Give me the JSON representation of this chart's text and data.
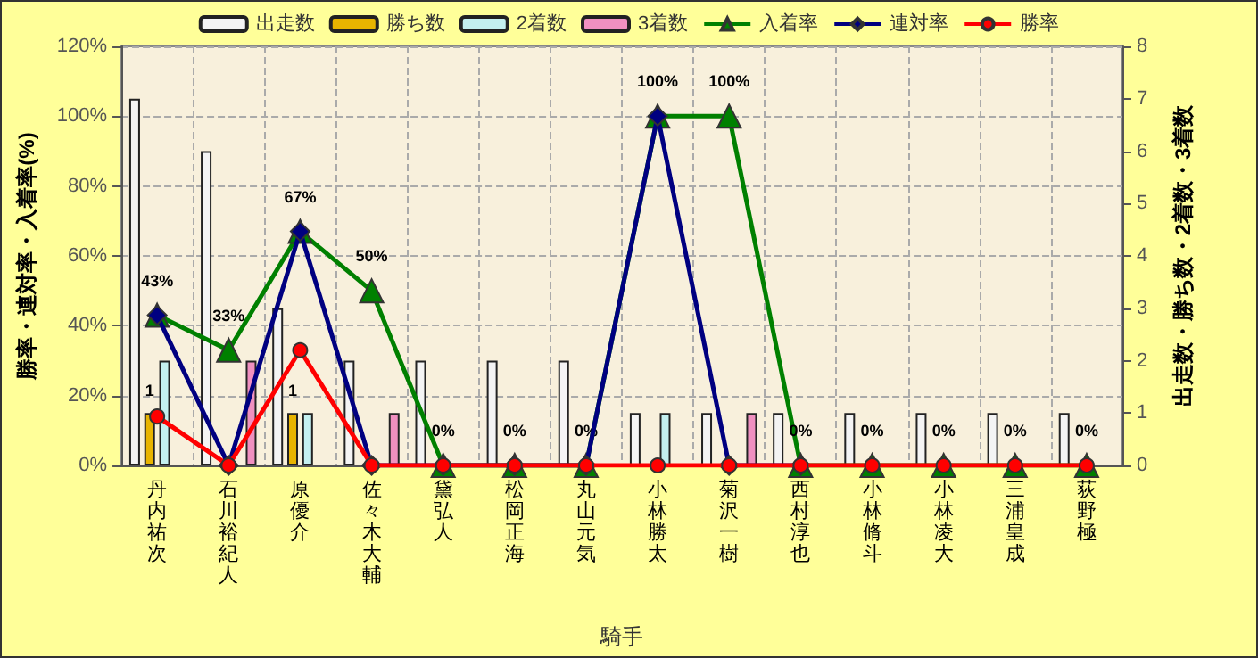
{
  "chart_data": {
    "type": "bar",
    "xlabel": "騎手",
    "ylabel": "勝率・連対率・入着率(%)",
    "y2label": "出走数・勝ち数・2着数・3着数",
    "categories": [
      "丹内祐次",
      "石川裕紀人",
      "原優介",
      "佐々木大輔",
      "黛弘人",
      "松岡正海",
      "丸山元気",
      "小林勝太",
      "菊沢一樹",
      "西村淳也",
      "小林脩斗",
      "小林凌大",
      "三浦皇成",
      "荻野極"
    ],
    "ylim": [
      0,
      120
    ],
    "yticks": [
      {
        "value": 0,
        "label": "0%"
      },
      {
        "value": 20,
        "label": "20%"
      },
      {
        "value": 40,
        "label": "40%"
      },
      {
        "value": 60,
        "label": "60%"
      },
      {
        "value": 80,
        "label": "80%"
      },
      {
        "value": 100,
        "label": "100%"
      },
      {
        "value": 120,
        "label": "120%"
      }
    ],
    "y2lim": [
      0,
      8
    ],
    "y2ticks": [
      0,
      1,
      2,
      3,
      4,
      5,
      6,
      7,
      8
    ],
    "grid": true,
    "legend": "top",
    "series": [
      {
        "name": "出走数",
        "axis": "y2",
        "color": "#f4f4f4",
        "values": [
          7,
          6,
          3,
          2,
          2,
          2,
          2,
          1,
          1,
          1,
          1,
          1,
          1,
          1
        ]
      },
      {
        "name": "勝ち数",
        "axis": "y2",
        "color": "#e8b400",
        "values": [
          1,
          0,
          1,
          0,
          0,
          0,
          0,
          0,
          0,
          0,
          0,
          0,
          0,
          0
        ],
        "value_labels": [
          "1",
          null,
          "1",
          null,
          null,
          null,
          null,
          null,
          null,
          null,
          null,
          null,
          null,
          null
        ]
      },
      {
        "name": "2着数",
        "axis": "y2",
        "color": "#c4f0f0",
        "values": [
          2,
          0,
          1,
          0,
          0,
          0,
          0,
          1,
          0,
          0,
          0,
          0,
          0,
          0
        ]
      },
      {
        "name": "3着数",
        "axis": "y2",
        "color": "#f090c0",
        "values": [
          0,
          2,
          0,
          1,
          0,
          0,
          0,
          0,
          1,
          0,
          0,
          0,
          0,
          0
        ]
      },
      {
        "name": "入着率",
        "type": "line",
        "color": "#008000",
        "marker": "triangle",
        "values": [
          43,
          33,
          67,
          50,
          0,
          0,
          0,
          100,
          100,
          0,
          0,
          0,
          0,
          0
        ],
        "value_labels": [
          "43%",
          "33%",
          "67%",
          "50%",
          "0%",
          "0%",
          "0%",
          "100%",
          "100%",
          "0%",
          "0%",
          "0%",
          "0%",
          "0%"
        ]
      },
      {
        "name": "連対率",
        "type": "line",
        "color": "#000080",
        "marker": "diamond",
        "values": [
          43,
          0,
          67,
          0,
          0,
          0,
          0,
          100,
          0,
          0,
          null,
          null,
          null,
          null
        ]
      },
      {
        "name": "勝率",
        "type": "line",
        "color": "#ff0000",
        "marker": "circle",
        "values": [
          14,
          0,
          33,
          0,
          0,
          0,
          0,
          0,
          0,
          0,
          0,
          0,
          0,
          0
        ]
      }
    ]
  }
}
